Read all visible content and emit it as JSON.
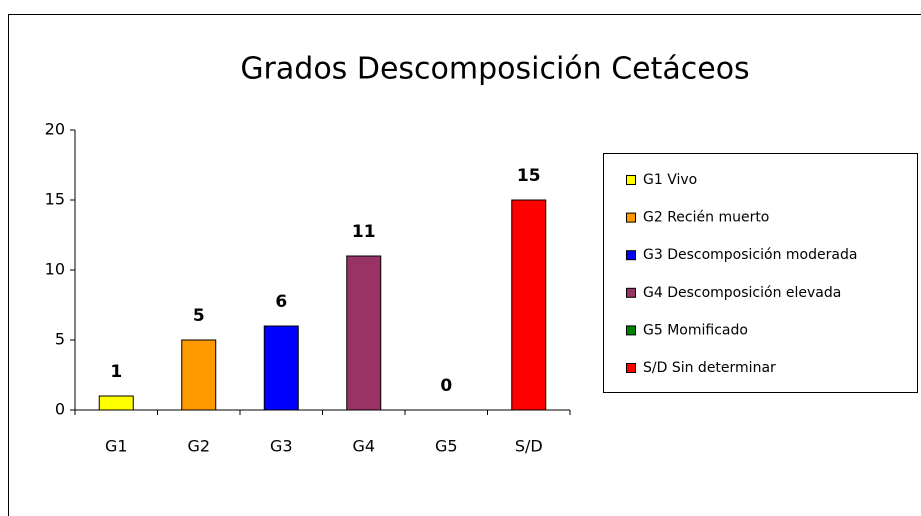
{
  "chart_data": {
    "type": "bar",
    "title": "Grados Descomposición Cetáceos",
    "categories": [
      "G1",
      "G2",
      "G3",
      "G4",
      "G5",
      "S/D"
    ],
    "values": [
      1,
      5,
      6,
      11,
      0,
      15
    ],
    "colors": [
      "#ffff00",
      "#ff9900",
      "#0000ff",
      "#993366",
      "#008000",
      "#ff0000"
    ],
    "legend_labels": [
      "G1 Vivo",
      "G2 Recién muerto",
      "G3 Descomposición moderada",
      "G4 Descomposición elevada",
      "G5 Momificado",
      "S/D Sin determinar"
    ],
    "legend": "right",
    "ylim": [
      0,
      20
    ],
    "yticks": [
      0,
      5,
      10,
      15,
      20
    ]
  }
}
